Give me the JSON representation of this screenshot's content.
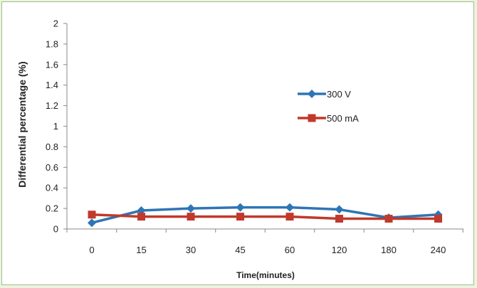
{
  "chart_data": {
    "type": "line",
    "categories": [
      "0",
      "15",
      "30",
      "45",
      "60",
      "120",
      "180",
      "240"
    ],
    "series": [
      {
        "name": "300 V",
        "color": "#2e75b6",
        "marker": "diamond",
        "values": [
          0.06,
          0.18,
          0.2,
          0.21,
          0.21,
          0.19,
          0.11,
          0.14
        ]
      },
      {
        "name": "500 mA",
        "color": "#c0392b",
        "marker": "square",
        "values": [
          0.14,
          0.12,
          0.12,
          0.12,
          0.12,
          0.1,
          0.1,
          0.1
        ]
      }
    ],
    "xlabel": "Time(minutes)",
    "ylabel": "Differential percentage (%)",
    "ylim": [
      0,
      2
    ],
    "yticks": [
      "0",
      "0.2",
      "0.4",
      "0.6",
      "0.8",
      "1",
      "1.2",
      "1.4",
      "1.6",
      "1.8",
      "2"
    ],
    "grid": false,
    "legend_position": "upper-right"
  }
}
